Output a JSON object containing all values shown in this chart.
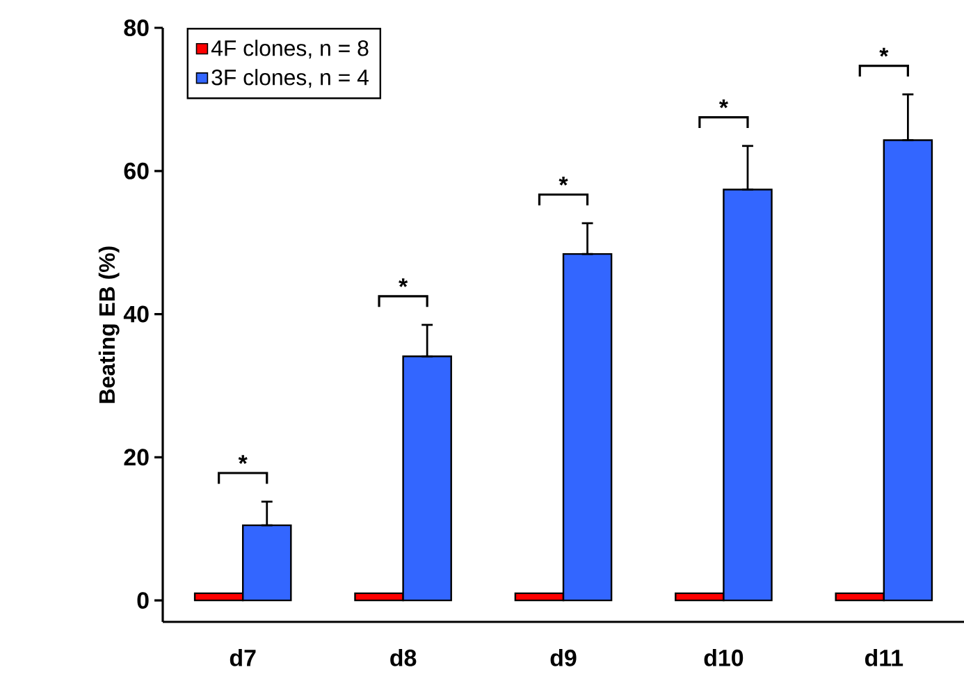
{
  "chart_data": {
    "type": "bar",
    "ylabel": "Beating EB (%)",
    "categories": [
      "d7",
      "d8",
      "d9",
      "d10",
      "d11"
    ],
    "series": [
      {
        "name": "4F clones, n = 8",
        "color": "#ff0000",
        "values": [
          1,
          1,
          1,
          1,
          1
        ]
      },
      {
        "name": "3F clones, n = 4",
        "color": "#3366ff",
        "values": [
          10.5,
          34.1,
          48.4,
          57.4,
          64.3
        ],
        "errors": [
          [
            10.5,
            13.8
          ],
          [
            34.1,
            38.5
          ],
          [
            48.4,
            52.7
          ],
          [
            57.4,
            63.5
          ],
          [
            64.3,
            70.7
          ]
        ]
      }
    ],
    "annotations": [
      "*",
      "*",
      "*",
      "*",
      "*"
    ],
    "ylim": [
      -3,
      80
    ],
    "yticks": [
      0,
      20,
      40,
      60,
      80
    ],
    "grid": false,
    "legend": "top left"
  }
}
